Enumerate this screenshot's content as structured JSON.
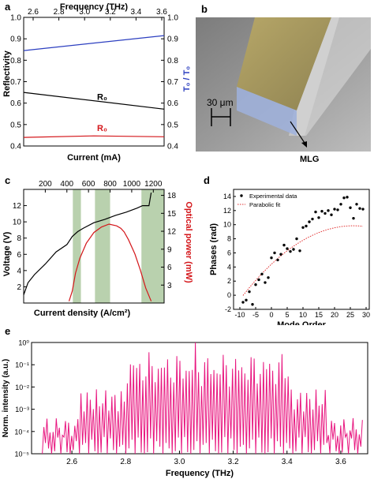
{
  "panel_labels": {
    "a": "a",
    "b": "b",
    "c": "c",
    "d": "d",
    "e": "e"
  },
  "colors": {
    "black": "#000000",
    "red": "#d4161a",
    "blue": "#2c3fc0",
    "pink": "#e8157f",
    "green": "#b9d1ae",
    "fit": "#e23030"
  },
  "sem": {
    "scale_label": "30 μm",
    "arrow_label": "MLG"
  },
  "chart_data": [
    {
      "id": "a",
      "type": "line",
      "xlabel": "Current (mA)",
      "x2label": "Frequency (THz)",
      "x2ticks": [
        "2.6",
        "2.8",
        "3.0",
        "3.2",
        "3.4",
        "3.6"
      ],
      "ylabel": "Reflectivity",
      "y2label": "T₀ / T₀",
      "ylim": [
        0.4,
        1.0
      ],
      "yticks": [
        0.4,
        0.5,
        0.6,
        0.7,
        0.8,
        0.9,
        1.0
      ],
      "y2ticks": [
        "0.4",
        "0.5",
        "0.6",
        "0.7",
        "0.8",
        "0.9",
        "1.0"
      ],
      "series": [
        {
          "name": "R₀",
          "color": "blue",
          "x": [
            0,
            1
          ],
          "values": [
            0.845,
            0.915
          ]
        },
        {
          "name": "R₀",
          "color": "black",
          "x": [
            0,
            1
          ],
          "values": [
            0.65,
            0.572
          ]
        },
        {
          "name": "R₀",
          "color": "red",
          "x": [
            0,
            0.5,
            1
          ],
          "values": [
            0.44,
            0.447,
            0.443
          ]
        }
      ],
      "annotations": [
        {
          "text": "R₀",
          "color": "black",
          "x": 0.5,
          "y": 0.615
        },
        {
          "text": "R₀",
          "color": "red",
          "x": 0.5,
          "y": 0.47
        }
      ]
    },
    {
      "id": "c",
      "type": "line",
      "xlabel": "Current density (A/cm²)",
      "x2label": "",
      "ylabel": "Voltage (V)",
      "y2label": "Optical power (mW)",
      "xlim": [
        0,
        1300
      ],
      "x2ticks": [
        200,
        400,
        600,
        800,
        1000,
        1200
      ],
      "ylim": [
        0,
        14
      ],
      "yticks": [
        2,
        4,
        6,
        8,
        10,
        12
      ],
      "y2lim": [
        0,
        19
      ],
      "y2ticks": [
        3,
        6,
        9,
        12,
        15,
        18
      ],
      "shaded_regions": [
        [
          455,
          530
        ],
        [
          660,
          800
        ],
        [
          1090,
          1300
        ]
      ],
      "series": [
        {
          "name": "Voltage",
          "color": "black",
          "x": [
            0,
            40,
            100,
            200,
            300,
            400,
            450,
            500,
            550,
            650,
            750,
            850,
            950,
            1050,
            1100,
            1160,
            1170,
            1180
          ],
          "values": [
            1.0,
            2.5,
            3.5,
            4.8,
            6.3,
            7.2,
            8.2,
            8.8,
            9.2,
            9.9,
            10.3,
            10.8,
            11.2,
            11.7,
            12.0,
            12.0,
            12.8,
            13.6
          ]
        },
        {
          "name": "Optical power",
          "color": "red",
          "axis": "y2",
          "x": [
            420,
            450,
            480,
            520,
            580,
            650,
            720,
            790,
            860,
            900,
            930,
            970,
            1030,
            1080,
            1130,
            1180
          ],
          "values": [
            0.3,
            2,
            5,
            7.5,
            10,
            11.8,
            12.7,
            13.2,
            12.9,
            12.5,
            11.9,
            10.6,
            8.2,
            5.5,
            2.5,
            0.3
          ]
        }
      ]
    },
    {
      "id": "d",
      "type": "scatter",
      "xlabel": "Mode Order",
      "ylabel": "Phases (rad)",
      "xlim": [
        -12,
        31
      ],
      "xticks": [
        -10,
        -5,
        0,
        5,
        10,
        15,
        20,
        25,
        30
      ],
      "ylim": [
        -2,
        15
      ],
      "yticks": [
        -2,
        0,
        2,
        4,
        6,
        8,
        10,
        12,
        14
      ],
      "legend": "top-left",
      "series": [
        {
          "name": "Experimental data",
          "color": "black",
          "x": [
            -9,
            -8,
            -7,
            -6,
            -5,
            -4,
            -3,
            -2,
            -1,
            0,
            1,
            2,
            3,
            4,
            5,
            6,
            7,
            8,
            9,
            10,
            11,
            12,
            13,
            14,
            15,
            16,
            17,
            18,
            19,
            20,
            21,
            22,
            23,
            24,
            25,
            26,
            27,
            28,
            29
          ],
          "values": [
            -1.0,
            -0.7,
            0.5,
            -1.3,
            1.5,
            2.2,
            3.0,
            1.8,
            2.5,
            5.3,
            6.0,
            5.0,
            5.8,
            7.1,
            6.6,
            6.2,
            6.5,
            8.0,
            6.3,
            9.6,
            9.8,
            10.4,
            10.8,
            11.8,
            11.0,
            11.9,
            11.6,
            12.0,
            11.4,
            12.2,
            12.1,
            12.9,
            13.8,
            13.9,
            12.4,
            10.9,
            12.9,
            12.3,
            12.2
          ]
        },
        {
          "name": "Parabolic fit",
          "color": "fit",
          "style": "dotted",
          "fit": {
            "a": -0.0081,
            "b": 0.42,
            "c": 4.4,
            "xrange": [
              -9,
              29
            ]
          }
        }
      ]
    },
    {
      "id": "e",
      "type": "line",
      "xlabel": "Frequency (THz)",
      "ylabel": "Norm. intensity (a.u.)",
      "xlim": [
        2.45,
        3.7
      ],
      "xticks": [
        "2.6",
        "2.8",
        "3.0",
        "3.2",
        "3.4",
        "3.6"
      ],
      "ylog": true,
      "ylim": [
        1e-05,
        1
      ],
      "yticks": [
        "10⁻⁵",
        "10⁻⁴",
        "10⁻³",
        "10⁻²",
        "10⁻¹",
        "10⁰"
      ],
      "comb": {
        "start": 2.49,
        "end": 3.68,
        "spacing": 0.0115,
        "floor_log": -4.4,
        "plateau_log": -1.2,
        "plateau_range": [
          2.8,
          3.4
        ],
        "shoulder_range": [
          2.62,
          3.54
        ],
        "shoulder_log": -2.6,
        "edge_log": -3.8,
        "dip_log": -5.0,
        "peak_log": 0,
        "peak_at": 3.05
      }
    }
  ]
}
